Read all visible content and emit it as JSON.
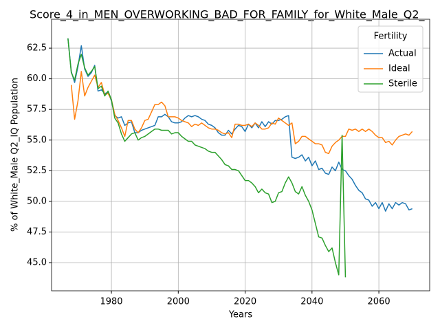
{
  "chart_data": {
    "type": "line",
    "title": "Score_4_in_MEN_OVERWORKING_BAD_FOR_FAMILY_for_White_Male_Q2_",
    "xlabel": "Years",
    "ylabel": "% of White_Male Q2_IQ Population",
    "legend_title": "Fertility",
    "legend": "upper right",
    "grid": true,
    "xlim": [
      1962.1,
      2075.2
    ],
    "ylim": [
      42.7,
      64.86
    ],
    "xticks": [
      1980,
      2000,
      2020,
      2040,
      2060
    ],
    "yticks": [
      {
        "value": 45,
        "label": "45.0"
      },
      47.5,
      {
        "value": 50,
        "label": "50.0"
      },
      52.5,
      {
        "value": 55,
        "label": "55.0"
      },
      57.5,
      {
        "value": 60,
        "label": "60.0"
      },
      62.5
    ],
    "x": [
      1967,
      1968,
      1969,
      1970,
      1971,
      1972,
      1973,
      1974,
      1975,
      1976,
      1977,
      1978,
      1979,
      1980,
      1981,
      1982,
      1983,
      1984,
      1985,
      1986,
      1987,
      1988,
      1989,
      1990,
      1991,
      1992,
      1993,
      1994,
      1995,
      1996,
      1997,
      1998,
      1999,
      2000,
      2001,
      2002,
      2003,
      2004,
      2005,
      2006,
      2007,
      2008,
      2009,
      2010,
      2011,
      2012,
      2013,
      2014,
      2015,
      2016,
      2017,
      2018,
      2019,
      2020,
      2021,
      2022,
      2023,
      2024,
      2025,
      2026,
      2027,
      2028,
      2029,
      2030,
      2031,
      2032,
      2033,
      2034,
      2035,
      2036,
      2037,
      2038,
      2039,
      2040,
      2041,
      2042,
      2043,
      2044,
      2045,
      2046,
      2047,
      2048,
      2049,
      2050,
      2051,
      2052,
      2053,
      2054,
      2055,
      2056,
      2057,
      2058,
      2059,
      2060,
      2061,
      2062,
      2063,
      2064,
      2065,
      2066,
      2067,
      2068,
      2069,
      2070
    ],
    "series": [
      {
        "name": "Actual",
        "color": "#1f77b4",
        "values": [
          63.3,
          60.6,
          59.7,
          61.0,
          62.7,
          60.8,
          60.2,
          60.5,
          61.1,
          59.0,
          59.1,
          58.8,
          58.9,
          58.2,
          57.0,
          56.8,
          56.9,
          56.2,
          56.4,
          56.5,
          55.6,
          55.6,
          55.8,
          55.9,
          56.0,
          56.1,
          56.2,
          56.9,
          56.9,
          57.1,
          56.9,
          56.5,
          56.4,
          56.4,
          56.5,
          56.8,
          57.0,
          56.9,
          57.0,
          56.9,
          56.7,
          56.6,
          56.3,
          56.2,
          56.0,
          55.6,
          55.4,
          55.4,
          55.8,
          55.5,
          55.9,
          56.2,
          56.1,
          55.7,
          56.3,
          56.0,
          56.4,
          56.0,
          56.5,
          56.1,
          56.5,
          56.3,
          56.6,
          56.6,
          56.7,
          56.9,
          57.0,
          53.6,
          53.5,
          53.6,
          53.8,
          53.3,
          53.6,
          52.9,
          53.3,
          52.6,
          52.7,
          52.3,
          52.2,
          52.8,
          52.5,
          53.2,
          52.6,
          52.5,
          52.1,
          51.8,
          51.3,
          50.9,
          50.7,
          50.2,
          50.1,
          49.6,
          49.9,
          49.4,
          49.9,
          49.2,
          49.8,
          49.4,
          49.9,
          49.7,
          49.9,
          49.8,
          49.3,
          49.4
        ]
      },
      {
        "name": "Ideal",
        "color": "#ff7f0e",
        "values": [
          null,
          59.5,
          56.7,
          58.2,
          60.6,
          58.6,
          59.3,
          59.8,
          60.3,
          59.3,
          59.7,
          58.7,
          58.8,
          58.3,
          57.1,
          56.6,
          56.0,
          55.3,
          56.6,
          56.6,
          55.9,
          55.6,
          56.0,
          56.6,
          56.7,
          57.3,
          57.9,
          57.9,
          58.1,
          57.8,
          56.9,
          56.9,
          56.9,
          56.8,
          56.6,
          56.5,
          56.4,
          56.1,
          56.3,
          56.2,
          56.4,
          56.2,
          56.0,
          55.9,
          55.9,
          55.8,
          55.6,
          55.5,
          55.6,
          55.2,
          56.3,
          56.3,
          56.2,
          56.2,
          56.3,
          56.1,
          56.4,
          56.2,
          55.9,
          55.9,
          56.0,
          56.4,
          56.3,
          56.8,
          56.6,
          56.4,
          56.2,
          56.4,
          54.7,
          54.9,
          55.3,
          55.3,
          55.1,
          54.9,
          54.7,
          54.7,
          54.6,
          54.0,
          53.9,
          54.5,
          54.8,
          55.0,
          55.3,
          55.3,
          55.9,
          55.8,
          55.9,
          55.7,
          55.9,
          55.7,
          55.9,
          55.7,
          55.4,
          55.2,
          55.2,
          54.8,
          54.9,
          54.6,
          55.0,
          55.3,
          55.4,
          55.5,
          55.4,
          55.7
        ]
      },
      {
        "name": "Sterile",
        "color": "#2ca02c",
        "values": [
          63.3,
          60.5,
          59.9,
          61.2,
          62.0,
          60.9,
          60.3,
          60.6,
          61.0,
          59.2,
          59.4,
          58.6,
          59.0,
          58.3,
          56.8,
          56.4,
          55.5,
          54.9,
          55.2,
          55.5,
          55.6,
          55.0,
          55.2,
          55.3,
          55.5,
          55.7,
          55.9,
          55.9,
          55.8,
          55.8,
          55.8,
          55.5,
          55.6,
          55.6,
          55.3,
          55.1,
          54.9,
          54.9,
          54.6,
          54.5,
          54.4,
          54.3,
          54.1,
          54.0,
          54.0,
          53.7,
          53.4,
          53.0,
          52.9,
          52.6,
          52.6,
          52.5,
          52.1,
          51.7,
          51.7,
          51.5,
          51.2,
          50.7,
          51.0,
          50.7,
          50.6,
          49.9,
          50.0,
          50.7,
          50.8,
          51.5,
          52.0,
          51.5,
          50.8,
          50.6,
          51.2,
          50.5,
          50.0,
          49.3,
          48.2,
          47.1,
          47.0,
          46.4,
          45.9,
          46.2,
          45.0,
          44.0,
          55.4,
          43.8,
          null,
          null,
          null,
          null,
          null,
          null,
          null,
          null,
          null,
          null,
          null,
          null,
          null,
          null,
          null,
          null,
          null,
          null,
          null,
          null
        ]
      }
    ]
  }
}
